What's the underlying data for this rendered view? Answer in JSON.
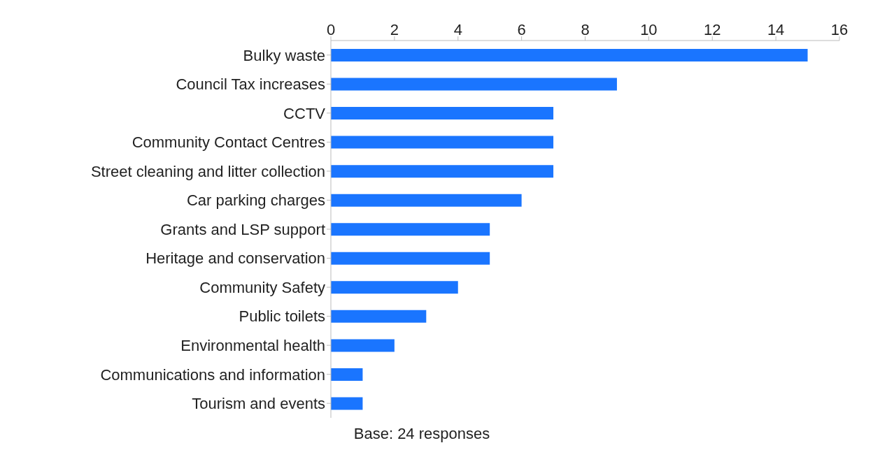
{
  "chart_data": {
    "type": "bar",
    "orientation": "horizontal",
    "categories": [
      "Bulky waste",
      "Council Tax increases",
      "CCTV",
      "Community Contact Centres",
      "Street cleaning and litter collection",
      "Car parking charges",
      "Grants and LSP support",
      "Heritage and conservation",
      "Community Safety",
      "Public toilets",
      "Environmental health",
      "Communications and information",
      "Tourism and events"
    ],
    "values": [
      15,
      9,
      7,
      7,
      7,
      6,
      5,
      5,
      4,
      3,
      2,
      1,
      1
    ],
    "color": "#1a75ff",
    "xlim": [
      0,
      16
    ],
    "xticks": [
      0,
      2,
      4,
      6,
      8,
      10,
      12,
      14,
      16
    ],
    "grid": false,
    "annotations": [
      "Base: 24 responses"
    ]
  }
}
